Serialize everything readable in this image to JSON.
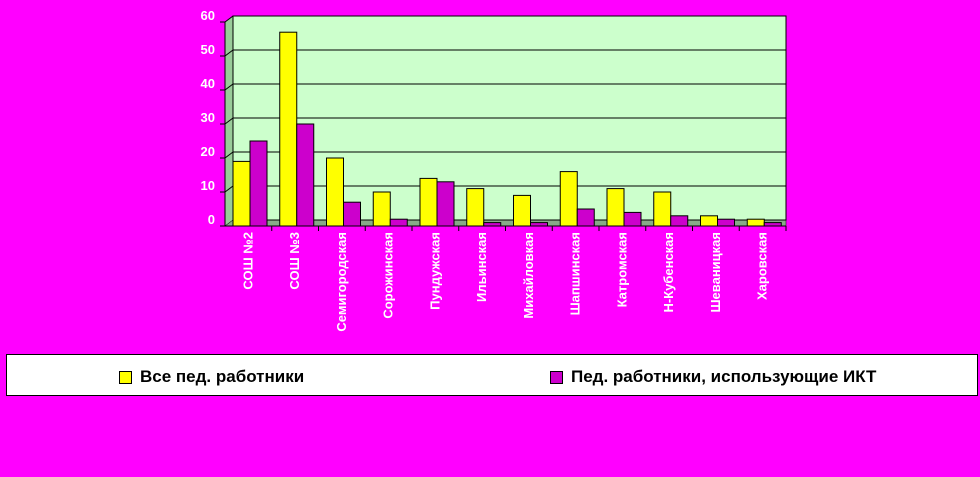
{
  "chart_data": {
    "type": "bar",
    "categories": [
      "СОШ №2",
      "СОШ №3",
      "Семигородская",
      "Сорожинская",
      "Пундужская",
      "Ильинская",
      "Михайловкая",
      "Шапшинская",
      "Катромская",
      "Н-Кубенская",
      "Шеваницкая",
      "Харовская"
    ],
    "series": [
      {
        "name": "Все пед. работники",
        "color": "#FFFF00",
        "values": [
          19,
          57,
          20,
          10,
          14,
          11,
          9,
          16,
          11,
          10,
          3,
          2
        ]
      },
      {
        "name": "Пед. работники, использующие ИКТ",
        "color": "#CC00CC",
        "values": [
          25,
          30,
          7,
          2,
          13,
          1,
          1,
          5,
          4,
          3,
          2,
          1
        ]
      }
    ],
    "ylim": [
      0,
      60
    ],
    "yticks": [
      0,
      10,
      20,
      30,
      40,
      50,
      60
    ],
    "plot_background": "#CCFFCC",
    "grid": true,
    "legend_position": "bottom"
  },
  "legend": {
    "series1": "Все пед. работники",
    "series2": "Пед. работники, использующие ИКТ"
  }
}
